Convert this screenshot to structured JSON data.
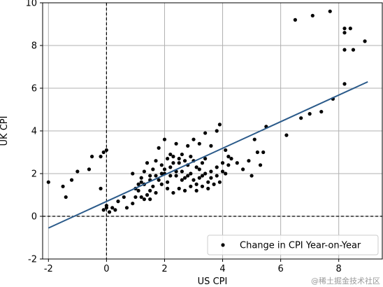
{
  "chart_data": {
    "type": "scatter",
    "xlabel": "US CPI",
    "ylabel": "UK CPI",
    "xlim": [
      -2.2,
      9.5
    ],
    "ylim": [
      -2,
      10
    ],
    "xticks": [
      -2,
      0,
      2,
      4,
      6,
      8
    ],
    "yticks": [
      -2,
      0,
      2,
      4,
      6,
      8,
      10
    ],
    "grid": true,
    "legend_position": "lower-right",
    "reference_lines": {
      "x": 0,
      "y": 0,
      "style": "dashed"
    },
    "series": [
      {
        "name": "Change in CPI Year-on-Year",
        "type": "scatter",
        "color": "#000000",
        "points": [
          [
            -2.0,
            1.6
          ],
          [
            -1.5,
            1.4
          ],
          [
            -1.4,
            0.9
          ],
          [
            -1.2,
            1.7
          ],
          [
            -1.0,
            2.1
          ],
          [
            -0.6,
            2.2
          ],
          [
            -0.5,
            2.8
          ],
          [
            -0.2,
            1.3
          ],
          [
            -0.1,
            3.0
          ],
          [
            0.0,
            3.1
          ],
          [
            -0.2,
            2.8
          ],
          [
            0.0,
            0.5
          ],
          [
            -0.1,
            0.3
          ],
          [
            0.1,
            0.2
          ],
          [
            0.0,
            0.4
          ],
          [
            0.2,
            0.4
          ],
          [
            0.3,
            0.3
          ],
          [
            0.4,
            0.7
          ],
          [
            0.6,
            0.9
          ],
          [
            0.7,
            0.4
          ],
          [
            0.9,
            0.6
          ],
          [
            1.0,
            0.9
          ],
          [
            1.1,
            1.2
          ],
          [
            1.2,
            0.9
          ],
          [
            1.3,
            0.8
          ],
          [
            1.4,
            1.0
          ],
          [
            1.5,
            0.8
          ],
          [
            0.9,
            2.0
          ],
          [
            1.1,
            1.5
          ],
          [
            1.2,
            1.8
          ],
          [
            1.3,
            2.1
          ],
          [
            1.4,
            2.5
          ],
          [
            1.5,
            1.9
          ],
          [
            1.6,
            2.2
          ],
          [
            1.7,
            2.6
          ],
          [
            1.8,
            1.7
          ],
          [
            1.9,
            2.4
          ],
          [
            2.0,
            2.0
          ],
          [
            2.1,
            1.6
          ],
          [
            2.2,
            2.3
          ],
          [
            2.3,
            2.8
          ],
          [
            2.4,
            1.9
          ],
          [
            2.5,
            2.5
          ],
          [
            2.6,
            2.1
          ],
          [
            2.7,
            1.8
          ],
          [
            2.8,
            2.4
          ],
          [
            2.9,
            2.0
          ],
          [
            3.0,
            2.6
          ],
          [
            3.1,
            1.5
          ],
          [
            3.2,
            2.2
          ],
          [
            3.3,
            1.9
          ],
          [
            3.4,
            2.7
          ],
          [
            3.5,
            1.6
          ],
          [
            1.6,
            1.4
          ],
          [
            1.8,
            3.2
          ],
          [
            2.0,
            3.6
          ],
          [
            2.2,
            2.9
          ],
          [
            2.4,
            3.4
          ],
          [
            2.6,
            2.9
          ],
          [
            2.8,
            3.3
          ],
          [
            3.0,
            3.6
          ],
          [
            3.2,
            3.4
          ],
          [
            3.4,
            3.9
          ],
          [
            3.6,
            3.3
          ],
          [
            3.8,
            4.0
          ],
          [
            3.9,
            4.3
          ],
          [
            4.0,
            2.5
          ],
          [
            4.1,
            2.0
          ],
          [
            4.2,
            2.8
          ],
          [
            4.5,
            2.5
          ],
          [
            4.7,
            2.2
          ],
          [
            4.9,
            2.6
          ],
          [
            5.0,
            1.9
          ],
          [
            5.1,
            3.6
          ],
          [
            5.2,
            3.0
          ],
          [
            5.3,
            2.4
          ],
          [
            5.5,
            4.2
          ],
          [
            5.4,
            3.0
          ],
          [
            1.0,
            1.3
          ],
          [
            1.2,
            1.6
          ],
          [
            1.5,
            1.2
          ],
          [
            1.7,
            1.1
          ],
          [
            1.9,
            1.5
          ],
          [
            2.1,
            1.3
          ],
          [
            2.3,
            1.1
          ],
          [
            2.5,
            1.3
          ],
          [
            2.7,
            1.2
          ],
          [
            2.9,
            1.4
          ],
          [
            3.1,
            1.2
          ],
          [
            3.3,
            1.4
          ],
          [
            3.5,
            1.3
          ],
          [
            3.7,
            1.5
          ],
          [
            3.9,
            1.6
          ],
          [
            4.1,
            3.1
          ],
          [
            4.3,
            2.7
          ],
          [
            2.1,
            2.7
          ],
          [
            2.3,
            2.5
          ],
          [
            2.5,
            2.7
          ],
          [
            2.7,
            2.6
          ],
          [
            2.9,
            2.8
          ],
          [
            3.1,
            2.3
          ],
          [
            3.3,
            2.5
          ],
          [
            3.6,
            2.1
          ],
          [
            3.8,
            2.3
          ],
          [
            1.9,
            2.0
          ],
          [
            1.7,
            1.9
          ],
          [
            1.5,
            1.7
          ],
          [
            1.3,
            1.5
          ],
          [
            2.0,
            2.2
          ],
          [
            2.2,
            1.9
          ],
          [
            2.4,
            2.1
          ],
          [
            2.6,
            1.7
          ],
          [
            2.8,
            1.9
          ],
          [
            3.0,
            1.7
          ],
          [
            3.2,
            1.8
          ],
          [
            3.4,
            2.0
          ],
          [
            3.6,
            1.8
          ],
          [
            3.8,
            1.9
          ],
          [
            4.0,
            2.1
          ],
          [
            4.2,
            2.4
          ],
          [
            6.2,
            3.8
          ],
          [
            6.7,
            4.6
          ],
          [
            7.0,
            4.8
          ],
          [
            7.4,
            4.9
          ],
          [
            7.8,
            5.5
          ],
          [
            8.2,
            6.2
          ],
          [
            6.5,
            9.2
          ],
          [
            7.1,
            9.4
          ],
          [
            7.7,
            9.6
          ],
          [
            8.2,
            8.8
          ],
          [
            8.2,
            8.6
          ],
          [
            8.4,
            8.8
          ],
          [
            8.2,
            7.8
          ],
          [
            8.5,
            7.8
          ],
          [
            8.9,
            8.2
          ]
        ]
      },
      {
        "type": "line",
        "color": "#2a5a8a",
        "points": [
          [
            -2.0,
            -0.55
          ],
          [
            9.0,
            6.3
          ]
        ]
      }
    ]
  },
  "watermark": "@稀土掘金技术社区"
}
